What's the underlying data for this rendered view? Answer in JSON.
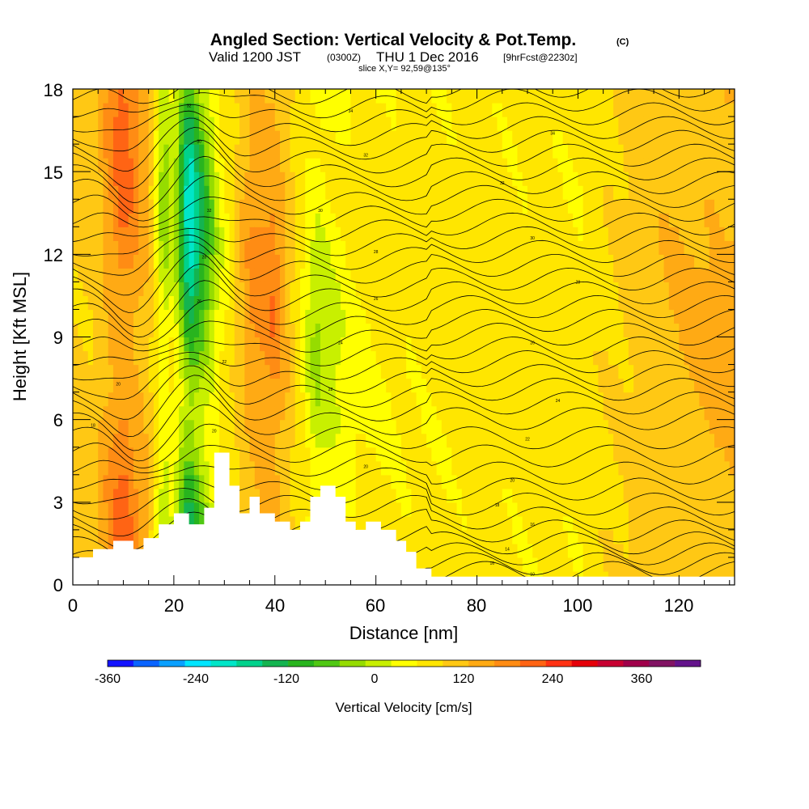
{
  "chart_data": {
    "type": "heatmap",
    "title": "Angled Section: Vertical Velocity & Pot.Temp.",
    "title_mark": "(C)",
    "subtitle": {
      "part1": "Valid 1200 JST",
      "part2": "(0300Z)",
      "part3": "THU 1 Dec 2016",
      "part4": "[9hrFcst@2230z]"
    },
    "slice_info": "slice X,Y= 92,59@135°",
    "xlabel": "Distance [nm]",
    "ylabel": "Height [Kft MSL]",
    "xlim": [
      0,
      131
    ],
    "ylim": [
      0,
      18
    ],
    "x_ticks": [
      "0",
      "20",
      "40",
      "60",
      "80",
      "100",
      "120"
    ],
    "y_ticks": [
      "0",
      "3",
      "6",
      "9",
      "12",
      "15",
      "18"
    ],
    "colorbar": {
      "title": "Vertical Velocity [cm/s]",
      "tick_labels": [
        "-360",
        "-240",
        "-120",
        "0",
        "120",
        "240",
        "360"
      ],
      "colors": [
        "#1414ff",
        "#0a64ff",
        "#0aa0ff",
        "#00e6ff",
        "#00e6c8",
        "#00d28c",
        "#14b450",
        "#28b41e",
        "#50c814",
        "#96dc00",
        "#c8f000",
        "#ffff00",
        "#ffe600",
        "#ffc814",
        "#ffaa14",
        "#ff8c14",
        "#ff6414",
        "#ff3214",
        "#e6000a",
        "#c80032",
        "#a0004b",
        "#821464",
        "#64148c"
      ]
    },
    "velocity_columns": [
      {
        "x": 4,
        "value": 10
      },
      {
        "x": 10,
        "value": 110
      },
      {
        "x": 15,
        "value": 30
      },
      {
        "x": 18,
        "value": -110
      },
      {
        "x": 20,
        "value": -60
      },
      {
        "x": 23,
        "value": -260
      },
      {
        "x": 26,
        "value": -160
      },
      {
        "x": 29,
        "value": -60
      },
      {
        "x": 35,
        "value": 60
      },
      {
        "x": 40,
        "value": 80
      },
      {
        "x": 48,
        "value": -90
      },
      {
        "x": 56,
        "value": -40
      },
      {
        "x": 62,
        "value": -30
      },
      {
        "x": 80,
        "value": -20
      },
      {
        "x": 100,
        "value": -25
      },
      {
        "x": 113,
        "value": 20
      },
      {
        "x": 124,
        "value": 40
      }
    ],
    "terrain": [
      [
        0,
        1
      ],
      [
        4,
        1
      ],
      [
        4,
        1.3
      ],
      [
        8,
        1.3
      ],
      [
        8,
        1.6
      ],
      [
        12,
        1.6
      ],
      [
        12,
        1.3
      ],
      [
        14,
        1.3
      ],
      [
        14,
        1.7
      ],
      [
        17,
        1.7
      ],
      [
        17,
        2.2
      ],
      [
        20,
        2.2
      ],
      [
        20,
        2.6
      ],
      [
        23,
        2.6
      ],
      [
        23,
        2.2
      ],
      [
        26,
        2.2
      ],
      [
        26,
        2.8
      ],
      [
        28,
        2.8
      ],
      [
        28,
        4.8
      ],
      [
        31,
        4.8
      ],
      [
        31,
        3.6
      ],
      [
        33,
        3.6
      ],
      [
        33,
        2.6
      ],
      [
        35,
        2.6
      ],
      [
        35,
        3.2
      ],
      [
        37,
        3.2
      ],
      [
        37,
        2.6
      ],
      [
        40,
        2.6
      ],
      [
        40,
        2.3
      ],
      [
        43,
        2.3
      ],
      [
        43,
        2.0
      ],
      [
        45,
        2.0
      ],
      [
        45,
        2.3
      ],
      [
        47,
        2.3
      ],
      [
        47,
        3.2
      ],
      [
        49,
        3.2
      ],
      [
        49,
        3.6
      ],
      [
        52,
        3.6
      ],
      [
        52,
        3.2
      ],
      [
        54,
        3.2
      ],
      [
        54,
        2.3
      ],
      [
        56,
        2.3
      ],
      [
        56,
        2.0
      ],
      [
        58,
        2.0
      ],
      [
        58,
        2.3
      ],
      [
        61,
        2.3
      ],
      [
        61,
        2.0
      ],
      [
        64,
        2.0
      ],
      [
        64,
        1.6
      ],
      [
        66,
        1.6
      ],
      [
        66,
        1.2
      ],
      [
        68,
        1.2
      ],
      [
        68,
        0.6
      ],
      [
        71,
        0.6
      ],
      [
        71,
        0.3
      ],
      [
        131,
        0.3
      ]
    ],
    "contour_labels": [
      {
        "x": 4,
        "y": 5.8,
        "text": "18"
      },
      {
        "x": 9,
        "y": 7.3,
        "text": "20"
      },
      {
        "x": 23,
        "y": 17.4,
        "text": "32"
      },
      {
        "x": 25,
        "y": 16.1,
        "text": "30"
      },
      {
        "x": 27,
        "y": 13.6,
        "text": "32"
      },
      {
        "x": 26,
        "y": 11.9,
        "text": "28"
      },
      {
        "x": 25,
        "y": 10.3,
        "text": "26"
      },
      {
        "x": 30,
        "y": 8.1,
        "text": "22"
      },
      {
        "x": 28,
        "y": 5.6,
        "text": "20"
      },
      {
        "x": 55,
        "y": 17.2,
        "text": "34"
      },
      {
        "x": 58,
        "y": 15.6,
        "text": "32"
      },
      {
        "x": 49,
        "y": 13.6,
        "text": "30"
      },
      {
        "x": 60,
        "y": 12.1,
        "text": "28"
      },
      {
        "x": 60,
        "y": 10.4,
        "text": "26"
      },
      {
        "x": 53,
        "y": 8.8,
        "text": "24"
      },
      {
        "x": 51,
        "y": 7.1,
        "text": "22"
      },
      {
        "x": 58,
        "y": 4.3,
        "text": "20"
      },
      {
        "x": 95,
        "y": 16.4,
        "text": "34"
      },
      {
        "x": 85,
        "y": 14.6,
        "text": "32"
      },
      {
        "x": 91,
        "y": 12.6,
        "text": "30"
      },
      {
        "x": 100,
        "y": 11.0,
        "text": "28"
      },
      {
        "x": 91,
        "y": 8.8,
        "text": "26"
      },
      {
        "x": 96,
        "y": 6.7,
        "text": "24"
      },
      {
        "x": 90,
        "y": 5.3,
        "text": "22"
      },
      {
        "x": 87,
        "y": 3.8,
        "text": "20"
      },
      {
        "x": 84,
        "y": 2.9,
        "text": "18"
      },
      {
        "x": 91,
        "y": 2.2,
        "text": "16"
      },
      {
        "x": 86,
        "y": 1.3,
        "text": "14"
      },
      {
        "x": 83,
        "y": 0.8,
        "text": "16"
      },
      {
        "x": 91,
        "y": 0.4,
        "text": "10"
      }
    ]
  }
}
